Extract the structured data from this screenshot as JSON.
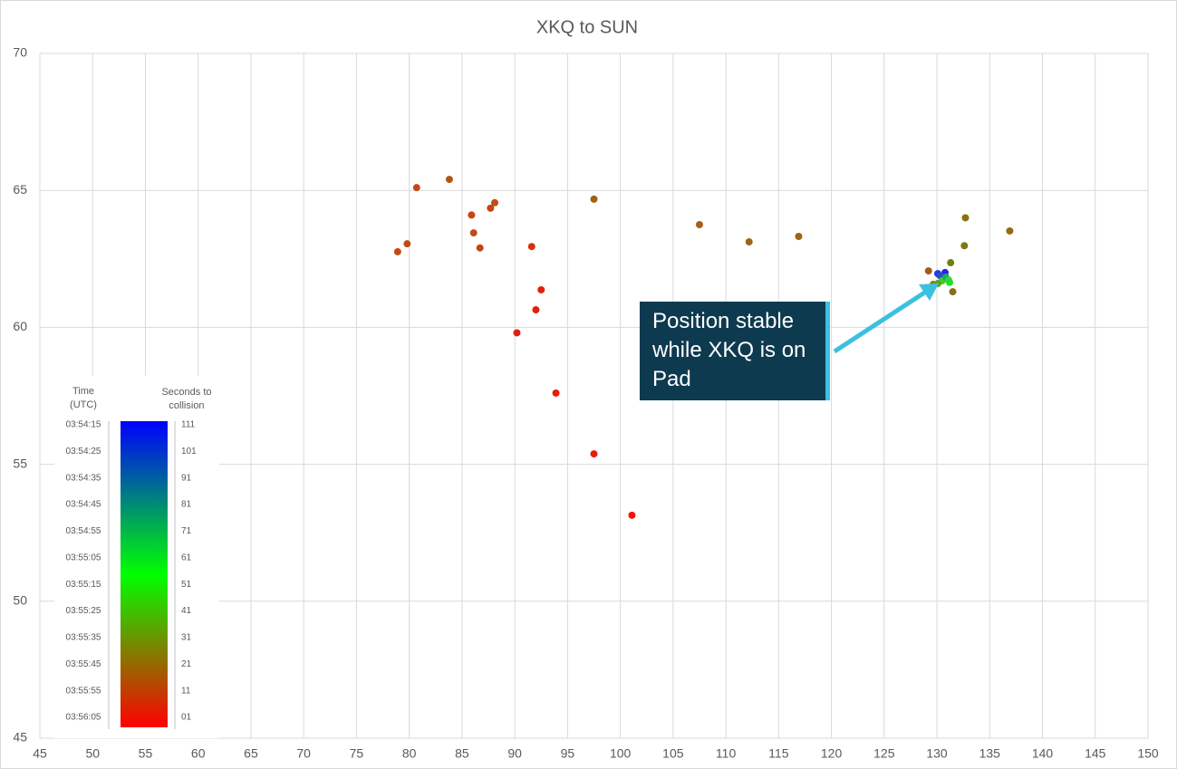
{
  "chart_data": {
    "type": "scatter",
    "title": "XKQ to SUN",
    "xlim": [
      45,
      150
    ],
    "xticks": [
      45,
      50,
      55,
      60,
      65,
      70,
      75,
      80,
      85,
      90,
      95,
      100,
      105,
      110,
      115,
      120,
      125,
      130,
      135,
      140,
      145,
      150
    ],
    "ylim": [
      45,
      70
    ],
    "yticks": [
      45,
      50,
      55,
      60,
      65,
      70
    ],
    "grid": true,
    "x": [
      78.9,
      79.8,
      80.7,
      83.8,
      85.9,
      86.1,
      86.7,
      87.7,
      88.1,
      91.6,
      92.5,
      92.0,
      90.2,
      93.9,
      97.5,
      97.5,
      101.1,
      107.5,
      112.2,
      116.9,
      132.7,
      136.9,
      132.6,
      131.3,
      129.2,
      131.5,
      130.08,
      130.77,
      130.34,
      130.5,
      131.2,
      129.65,
      130.85,
      130.08,
      131.1
    ],
    "series": [
      {
        "values": [
          62.76,
          63.05,
          65.1,
          65.4,
          64.1,
          63.45,
          62.9,
          64.35,
          64.55,
          62.95,
          61.37,
          60.64,
          59.8,
          57.6,
          64.68,
          55.38,
          53.14,
          63.75,
          63.12,
          63.32,
          64.0,
          63.52,
          62.98,
          62.36,
          62.06,
          61.3,
          61.96,
          62.0,
          61.87,
          61.7,
          61.64,
          61.57,
          61.83,
          61.6,
          61.73
        ],
        "colors": [
          "#c24a18",
          "#c24a18",
          "#c04b16",
          "#b55415",
          "#c84413",
          "#c24a18",
          "#c84413",
          "#c84413",
          "#b55415",
          "#d8300e",
          "#e0200e",
          "#e0200e",
          "#e0200e",
          "#e81c0c",
          "#9e6416",
          "#e81c0c",
          "#ec180c",
          "#a86016",
          "#a06416",
          "#9e6416",
          "#8a6e12",
          "#9a6614",
          "#7f7812",
          "#6f8010",
          "#a45c14",
          "#8a6e12",
          "#1f3fd8",
          "#2626e8",
          "#2a4ec8",
          "#3fcc2a",
          "#22e02a",
          "#7a8a14",
          "#1aa86a",
          "#60a020",
          "#2ad830"
        ]
      }
    ],
    "annotation": "Position stable while XKQ is on Pad",
    "colorbar": {
      "left_title": [
        "Time",
        "(UTC)"
      ],
      "right_title": [
        "Seconds to",
        "collision"
      ],
      "times": [
        "03:54:15",
        "03:54:25",
        "03:54:35",
        "03:54:45",
        "03:54:55",
        "03:55:05",
        "03:55:15",
        "03:55:25",
        "03:55:35",
        "03:55:45",
        "03:55:55",
        "03:56:05"
      ],
      "seconds": [
        111,
        101,
        91,
        81,
        71,
        61,
        51,
        41,
        31,
        21,
        11,
        {
          "value": 1,
          "label": "01"
        }
      ],
      "colors": [
        "#0000ff",
        "#00ff00",
        "#ff0000"
      ]
    }
  }
}
